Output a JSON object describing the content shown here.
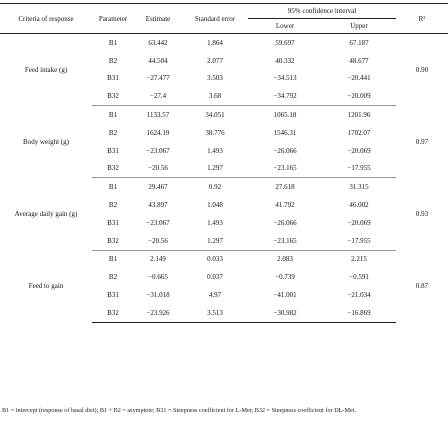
{
  "table": {
    "headers": {
      "criteria": "Criteria of response",
      "parameter": "Parameter",
      "estimate": "Estimate",
      "standard_error": "Standard error",
      "ci": "95% confidence interval",
      "lower": "Lower",
      "upper": "Upper",
      "r2": "R²"
    },
    "groups": [
      {
        "criteria": "Feed intake (g)",
        "r2": "0.90",
        "rows": [
          {
            "parameter": "B1",
            "estimate": "63.442",
            "se": "1.864",
            "lower": "59.697",
            "upper": "67.187"
          },
          {
            "parameter": "B2",
            "estimate": "44.504",
            "se": "2.077",
            "lower": "40.332",
            "upper": "48.677"
          },
          {
            "parameter": "B31",
            "estimate": "−27.477",
            "se": "3.503",
            "lower": "−34.513",
            "upper": "−20.441"
          },
          {
            "parameter": "B32",
            "estimate": "−27.4",
            "se": "3.68",
            "lower": "−34.792",
            "upper": "−20.009"
          }
        ]
      },
      {
        "criteria": "Body weight (g)",
        "r2": "0.97",
        "rows": [
          {
            "parameter": "B1",
            "estimate": "1133.57",
            "se": "34.051",
            "lower": "1065.18",
            "upper": "1201.96"
          },
          {
            "parameter": "B2",
            "estimate": "1624.19",
            "se": "38.776",
            "lower": "1546.31",
            "upper": "1702.07"
          },
          {
            "parameter": "B31",
            "estimate": "−23.067",
            "se": "1.493",
            "lower": "−26.066",
            "upper": "−20.069"
          },
          {
            "parameter": "B32",
            "estimate": "−20.56",
            "se": "1.297",
            "lower": "−23.165",
            "upper": "−17.955"
          }
        ]
      },
      {
        "criteria": "Average daily gain (g)",
        "r2": "0.93",
        "rows": [
          {
            "parameter": "B1",
            "estimate": "29.467",
            "se": "0.92",
            "lower": "27.618",
            "upper": "31.315"
          },
          {
            "parameter": "B2",
            "estimate": "43.897",
            "se": "1.048",
            "lower": "41.792",
            "upper": "46.002"
          },
          {
            "parameter": "B31",
            "estimate": "−23.067",
            "se": "1.493",
            "lower": "−26.066",
            "upper": "−20.069"
          },
          {
            "parameter": "B32",
            "estimate": "−20.56",
            "se": "1.297",
            "lower": "−23.165",
            "upper": "−17.955"
          }
        ]
      },
      {
        "criteria": "Feed to gain",
        "r2": "0.87",
        "rows": [
          {
            "parameter": "B1",
            "estimate": "2.149",
            "se": "0.033",
            "lower": "2.083",
            "upper": "2.215"
          },
          {
            "parameter": "B2",
            "estimate": "−0.665",
            "se": "0.037",
            "lower": "−0.739",
            "upper": "−0.591"
          },
          {
            "parameter": "B31",
            "estimate": "−31.018",
            "se": "4.97",
            "lower": "−41.001",
            "upper": "−21.034"
          },
          {
            "parameter": "B32",
            "estimate": "−23.926",
            "se": "3.513",
            "lower": "−30.982",
            "upper": "−16.869"
          }
        ]
      }
    ]
  },
  "footnote": "B1 = intercept (response of basal diet); B1 + B2 = asymptote; B31 = Steepness coefficient for L-Met; B32 = Steepness coefficient for DL-Met."
}
